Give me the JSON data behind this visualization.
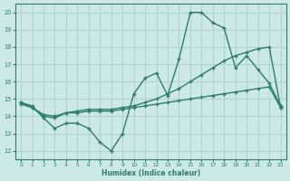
{
  "xlabel": "Humidex (Indice chaleur)",
  "bg_color": "#cce8e8",
  "grid_color": "#b0d4d4",
  "line_color": "#2e7d6e",
  "x_ticks": [
    0,
    1,
    2,
    3,
    4,
    5,
    6,
    7,
    8,
    9,
    10,
    11,
    12,
    13,
    14,
    15,
    16,
    17,
    18,
    19,
    20,
    21,
    22,
    23
  ],
  "y_ticks": [
    12,
    13,
    14,
    15,
    16,
    17,
    18,
    19,
    20
  ],
  "xlim": [
    -0.5,
    23.5
  ],
  "ylim": [
    11.5,
    20.5
  ],
  "line1_x": [
    0,
    1,
    2,
    3,
    4,
    5,
    6,
    7,
    8,
    9,
    10,
    11,
    12,
    13,
    14,
    15,
    16,
    17,
    18,
    19,
    20,
    21,
    22,
    23
  ],
  "line1_y": [
    14.8,
    14.6,
    13.9,
    13.3,
    13.6,
    13.6,
    13.3,
    12.5,
    12.0,
    13.0,
    15.3,
    16.2,
    16.5,
    15.2,
    17.3,
    20.0,
    20.0,
    19.4,
    19.1,
    16.8,
    17.5,
    16.7,
    15.9,
    14.6
  ],
  "line2_x": [
    0,
    1,
    2,
    3,
    4,
    5,
    6,
    7,
    8,
    9,
    10,
    11,
    12,
    13,
    14,
    15,
    16,
    17,
    18,
    19,
    20,
    21,
    22,
    23
  ],
  "line2_y": [
    14.7,
    14.5,
    14.1,
    14.0,
    14.2,
    14.3,
    14.4,
    14.4,
    14.4,
    14.5,
    14.6,
    14.8,
    15.0,
    15.3,
    15.6,
    16.0,
    16.4,
    16.8,
    17.2,
    17.5,
    17.7,
    17.9,
    18.0,
    14.5
  ],
  "line3_x": [
    0,
    1,
    2,
    3,
    4,
    5,
    6,
    7,
    8,
    9,
    10,
    11,
    12,
    13,
    14,
    15,
    16,
    17,
    18,
    19,
    20,
    21,
    22,
    23
  ],
  "line3_y": [
    14.8,
    14.5,
    14.0,
    13.9,
    14.2,
    14.2,
    14.3,
    14.3,
    14.3,
    14.4,
    14.5,
    14.6,
    14.7,
    14.8,
    14.9,
    15.0,
    15.1,
    15.2,
    15.3,
    15.4,
    15.5,
    15.6,
    15.7,
    14.5
  ]
}
